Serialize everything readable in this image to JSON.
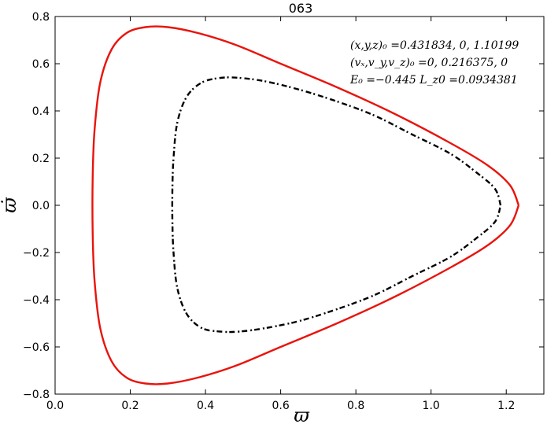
{
  "chart_data": {
    "type": "line",
    "title": "063",
    "xlabel": "ϖ",
    "ylabel": "ϖ̇",
    "xlim": [
      0.0,
      1.3
    ],
    "ylim": [
      -0.8,
      0.8
    ],
    "xticks": [
      "0.0",
      "0.2",
      "0.4",
      "0.6",
      "0.8",
      "1.0",
      "1.2"
    ],
    "yticks": [
      "0.8",
      "0.6",
      "0.4",
      "0.2",
      "0.0",
      "−0.2",
      "−0.4",
      "−0.6",
      "−0.8"
    ],
    "xtick_values": [
      0.0,
      0.2,
      0.4,
      0.6,
      0.8,
      1.0,
      1.2
    ],
    "ytick_values": [
      0.8,
      0.6,
      0.4,
      0.2,
      0.0,
      -0.2,
      -0.4,
      -0.6,
      -0.8
    ],
    "grid": false,
    "annotations": [
      "(x,y,z)₀ =0.431834, 0, 1.10199",
      "(vₓ,v_y,v_z)₀ =0, 0.216375, 0",
      "E₀ =−0.445  L_z0 =0.0934381"
    ],
    "series": [
      {
        "style": "solid",
        "color": "#e8140c",
        "x": [
          1.233,
          1.21,
          1.15,
          1.05,
          0.9,
          0.75,
          0.6,
          0.48,
          0.38,
          0.3,
          0.24,
          0.19,
          0.15,
          0.12,
          0.105,
          0.1,
          0.1,
          0.105,
          0.12,
          0.15,
          0.19,
          0.24,
          0.3,
          0.38,
          0.48,
          0.6,
          0.75,
          0.9,
          1.05,
          1.15,
          1.21,
          1.233
        ],
        "y": [
          0.0,
          0.085,
          0.17,
          0.265,
          0.39,
          0.5,
          0.6,
          0.68,
          0.73,
          0.755,
          0.755,
          0.73,
          0.66,
          0.52,
          0.32,
          0.12,
          -0.12,
          -0.32,
          -0.52,
          -0.66,
          -0.73,
          -0.755,
          -0.755,
          -0.73,
          -0.68,
          -0.6,
          -0.5,
          -0.39,
          -0.265,
          -0.17,
          -0.085,
          0.0
        ]
      },
      {
        "style": "dashed",
        "color": "#000000",
        "x": [
          1.185,
          1.17,
          1.12,
          1.05,
          0.95,
          0.85,
          0.75,
          0.65,
          0.56,
          0.49,
          0.44,
          0.39,
          0.35,
          0.325,
          0.315,
          0.312,
          0.312,
          0.315,
          0.325,
          0.35,
          0.39,
          0.44,
          0.49,
          0.56,
          0.65,
          0.75,
          0.85,
          0.95,
          1.05,
          1.12,
          1.17,
          1.185
        ],
        "y": [
          0.0,
          0.07,
          0.14,
          0.22,
          0.3,
          0.38,
          0.44,
          0.49,
          0.525,
          0.54,
          0.54,
          0.52,
          0.46,
          0.35,
          0.2,
          0.07,
          -0.07,
          -0.2,
          -0.35,
          -0.46,
          -0.52,
          -0.535,
          -0.535,
          -0.52,
          -0.49,
          -0.44,
          -0.38,
          -0.3,
          -0.22,
          -0.14,
          -0.07,
          0.0
        ]
      }
    ]
  }
}
